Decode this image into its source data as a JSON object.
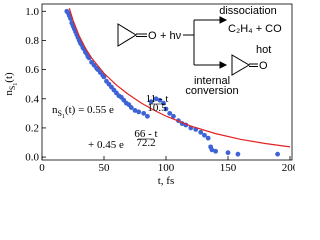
{
  "chart_data": {
    "type": "scatter",
    "xlabel": "t, fs",
    "ylabel": {
      "n": "n",
      "s": "S",
      "sub": "1",
      "rest": "(t)"
    },
    "xlim": [
      0,
      200
    ],
    "ylim": [
      -0.02,
      1.05
    ],
    "xticks": [
      0,
      50,
      100,
      150,
      200
    ],
    "yticks": [
      {
        "value": 0,
        "label": "0.0"
      },
      {
        "value": 0.2,
        "label": "0.2"
      },
      {
        "value": 0.4,
        "label": "0.4"
      },
      {
        "value": 0.6,
        "label": "0.6"
      },
      {
        "value": 0.8,
        "label": "0.8"
      },
      {
        "value": 1.0,
        "label": "1.0"
      }
    ],
    "series": [
      {
        "style": "markers",
        "color": "#3d63d6",
        "x": [
          20,
          21,
          22,
          23,
          24,
          25,
          26,
          27,
          28,
          29,
          30,
          31,
          32,
          33,
          34,
          35,
          36,
          37,
          38,
          40,
          42,
          44,
          45,
          47,
          49,
          50,
          52,
          54,
          56,
          58,
          60,
          62,
          64,
          66,
          68,
          70,
          72,
          75,
          78,
          82,
          85,
          88,
          92,
          95,
          98,
          100,
          103,
          106,
          110,
          113,
          116,
          120,
          124,
          128,
          131,
          134,
          136,
          137,
          140,
          150,
          158,
          190
        ],
        "values": [
          1.0,
          0.99,
          0.97,
          0.95,
          0.92,
          0.9,
          0.88,
          0.86,
          0.84,
          0.82,
          0.8,
          0.78,
          0.77,
          0.75,
          0.74,
          0.72,
          0.71,
          0.69,
          0.68,
          0.65,
          0.63,
          0.61,
          0.6,
          0.58,
          0.56,
          0.55,
          0.52,
          0.5,
          0.48,
          0.46,
          0.44,
          0.42,
          0.41,
          0.39,
          0.37,
          0.36,
          0.34,
          0.32,
          0.31,
          0.3,
          0.28,
          0.38,
          0.4,
          0.39,
          0.37,
          0.33,
          0.3,
          0.28,
          0.25,
          0.23,
          0.22,
          0.2,
          0.19,
          0.17,
          0.15,
          0.13,
          0.07,
          0.05,
          0.04,
          0.03,
          0.02,
          0.02
        ]
      },
      {
        "style": "line",
        "color": "#e32222",
        "x": [
          22,
          25,
          30,
          35,
          40,
          50,
          60,
          70,
          80,
          90,
          100,
          120,
          140,
          160,
          180,
          200
        ],
        "values": [
          1.021,
          0.939,
          0.831,
          0.747,
          0.68,
          0.575,
          0.494,
          0.428,
          0.371,
          0.323,
          0.281,
          0.213,
          0.161,
          0.122,
          0.093,
          0.07
        ]
      }
    ],
    "equation": {
      "n": "n",
      "s": "S",
      "sub": "1",
      "line1": "(t) = 0.55 e",
      "num1": "11 - t",
      "den1": "10.5",
      "line2": "+ 0.45 e",
      "num2": "66 - t",
      "den2": "72.2"
    },
    "scheme": {
      "oxygen": "O",
      "light": "+ hν",
      "dissociation": "dissociation",
      "products": "C₂H₄ + CO",
      "internal": "internal",
      "conversion": "conversion",
      "hot": "hot",
      "oxygen2": "O"
    }
  }
}
